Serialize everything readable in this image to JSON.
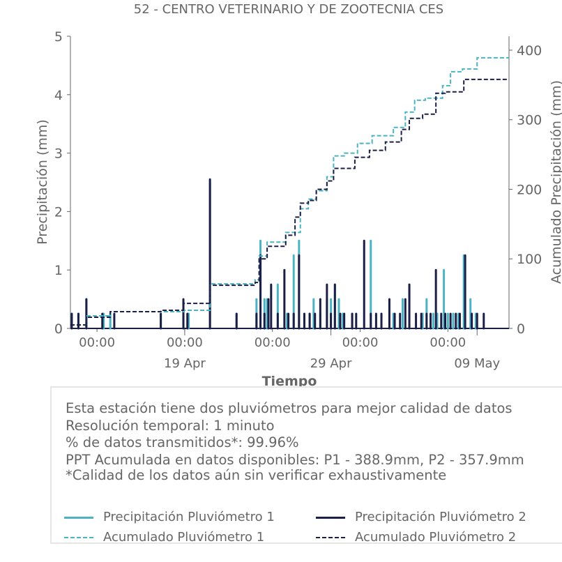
{
  "title": "52 - CENTRO VETERINARIO Y DE ZOOTECNIA CES",
  "colors": {
    "p1": "#4bb3c2",
    "p2": "#1c1f45",
    "text": "#666666",
    "axis": "#666666"
  },
  "chart_data": {
    "type": "line",
    "xlabel": "Tiempo",
    "ylabel_left": "Precipitación (mm)",
    "ylabel_right": "Acumulado Precipitación (mm)",
    "ylim_left": [
      0,
      5
    ],
    "ylim_right": [
      0,
      420
    ],
    "yticks_left": [
      "0",
      "1",
      "2",
      "3",
      "4",
      "5"
    ],
    "yticks_right": [
      "0",
      "100",
      "200",
      "300",
      "400"
    ],
    "xlim_days": [
      0,
      33
    ],
    "xticks_minor": [
      {
        "day": 2,
        "label": "00:00"
      },
      {
        "day": 8.6,
        "label": "00:00"
      },
      {
        "day": 15.2,
        "label": "00:00"
      },
      {
        "day": 21.8,
        "label": "00:00"
      },
      {
        "day": 28.4,
        "label": "00:00"
      }
    ],
    "xticks_major": [
      {
        "day": 8.6,
        "label": "19 Apr"
      },
      {
        "day": 19.6,
        "label": "29 Apr"
      },
      {
        "day": 30.6,
        "label": "09 May"
      }
    ],
    "grid": false,
    "series": [
      {
        "name": "Precipitación Pluviómetro 1",
        "kind": "bars",
        "color": "#4bb3c2",
        "x": [
          0.1,
          0.6,
          1.2,
          2.5,
          3.0,
          6.8,
          8.5,
          8.9,
          10.5,
          12.5,
          14.0,
          14.3,
          14.6,
          14.8,
          15.6,
          16.3,
          16.8,
          17.2,
          17.6,
          18.0,
          18.3,
          18.8,
          19.3,
          19.6,
          19.9,
          20.2,
          20.5,
          21.2,
          22.6,
          23.4,
          24.3,
          25.0,
          25.5,
          26.5,
          26.8,
          27.3,
          27.6,
          28.1,
          28.4,
          28.8,
          29.2,
          29.6,
          30.1,
          30.5
        ],
        "values": [
          0.25,
          0.25,
          0.5,
          0.25,
          0.25,
          0.25,
          0.25,
          0.25,
          2.5,
          0.25,
          0.5,
          1.5,
          0.5,
          0.5,
          0.75,
          0.25,
          1.25,
          1.5,
          0.25,
          0.25,
          0.5,
          0.25,
          0.5,
          0.5,
          0.75,
          0.5,
          0.25,
          0.25,
          1.5,
          0.25,
          0.25,
          0.5,
          0.75,
          0.25,
          0.5,
          0.25,
          0.25,
          1.0,
          0.25,
          0.25,
          0.25,
          1.25,
          0.5,
          0.25
        ]
      },
      {
        "name": "Precipitación Pluviómetro 2",
        "kind": "bars",
        "color": "#1c1f45",
        "x": [
          0.1,
          0.6,
          1.2,
          2.4,
          3.3,
          6.8,
          8.5,
          8.8,
          10.5,
          12.5,
          14.0,
          14.3,
          14.6,
          14.9,
          15.1,
          15.6,
          16.1,
          16.4,
          16.8,
          17.2,
          17.6,
          18.0,
          18.4,
          18.8,
          19.3,
          19.6,
          19.9,
          20.3,
          20.6,
          21.2,
          21.5,
          22.1,
          22.6,
          23.0,
          23.4,
          24.0,
          24.4,
          24.8,
          25.2,
          25.5,
          26.0,
          26.4,
          26.8,
          27.1,
          27.5,
          27.9,
          28.2,
          28.6,
          29.0,
          29.3,
          29.7,
          30.2,
          30.6,
          31.1
        ],
        "values": [
          0.25,
          0.25,
          0.5,
          0.25,
          0.25,
          0.25,
          0.5,
          0.25,
          2.55,
          0.25,
          0.25,
          1.25,
          0.25,
          0.5,
          0.75,
          0.25,
          1.0,
          0.25,
          0.25,
          1.25,
          0.25,
          0.25,
          0.25,
          0.5,
          0.75,
          0.25,
          0.75,
          0.25,
          0.25,
          0.25,
          0.25,
          1.5,
          0.25,
          0.25,
          0.25,
          0.5,
          0.25,
          0.25,
          0.5,
          0.75,
          0.25,
          0.25,
          0.25,
          0.25,
          1.0,
          0.25,
          0.25,
          0.25,
          0.25,
          0.25,
          1.25,
          0.25,
          0.25,
          0.25
        ]
      },
      {
        "name": "Acumulado Pluviómetro 1",
        "kind": "step",
        "color": "#4bb3c2",
        "x": [
          0,
          1.2,
          3.0,
          8.5,
          10.5,
          13.9,
          14.2,
          14.8,
          16.2,
          17.3,
          17.9,
          18.5,
          19.3,
          19.8,
          20.6,
          21.6,
          22.7,
          24.3,
          25.2,
          25.9,
          26.7,
          28.0,
          28.6,
          29.5,
          30.6,
          33
        ],
        "values": [
          5,
          18,
          24,
          26,
          64,
          70,
          104,
          124,
          138,
          172,
          186,
          198,
          218,
          248,
          252,
          266,
          277,
          289,
          311,
          328,
          331,
          349,
          369,
          373,
          389,
          389
        ]
      },
      {
        "name": "Acumulado Pluviómetro 2",
        "kind": "step",
        "color": "#1c1f45",
        "x": [
          0,
          1.2,
          3.0,
          6.8,
          8.5,
          10.5,
          13.9,
          14.2,
          14.8,
          16.2,
          16.9,
          17.3,
          17.9,
          18.5,
          19.3,
          19.8,
          21.4,
          22.5,
          23.7,
          24.9,
          25.5,
          26.5,
          27.5,
          28.2,
          29.6,
          30.6,
          33
        ],
        "values": [
          5,
          16,
          24,
          26,
          36,
          62,
          66,
          100,
          118,
          134,
          160,
          180,
          184,
          200,
          212,
          230,
          246,
          256,
          268,
          286,
          302,
          308,
          338,
          340,
          358,
          358,
          358
        ]
      }
    ]
  },
  "info": {
    "line1": "Esta estación tiene dos pluviómetros para mejor calidad de datos",
    "line2": "Resolución temporal: 1 minuto",
    "line3": "% de datos transmitidos*: 99.96%",
    "line4": "PPT Acumulada en datos disponibles: P1 - 388.9mm, P2 - 357.9mm",
    "line5": "*Calidad de los datos aún sin verificar exhaustivamente"
  },
  "legend": {
    "p1_precip": "Precipitación Pluviómetro 1",
    "p2_precip": "Precipitación Pluviómetro 2",
    "p1_acum": "Acumulado Pluviómetro 1",
    "p2_acum": "Acumulado Pluviómetro 2"
  }
}
